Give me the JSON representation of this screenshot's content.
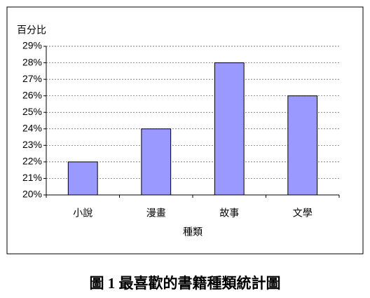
{
  "chart_data": {
    "type": "bar",
    "title": "圖 1 最喜歡的書籍種類統計圖",
    "y_label": "百分比",
    "x_label": "種類",
    "categories": [
      "小說",
      "漫畫",
      "故事",
      "文學"
    ],
    "values": [
      22,
      24,
      28,
      26
    ],
    "color": "#9999ff",
    "ylim": [
      20,
      29
    ],
    "yticks": [
      {
        "value": 20,
        "label": "20%"
      },
      {
        "value": 21,
        "label": "21%"
      },
      {
        "value": 22,
        "label": "22%"
      },
      {
        "value": 23,
        "label": "23%"
      },
      {
        "value": 24,
        "label": "24%"
      },
      {
        "value": 25,
        "label": "25%"
      },
      {
        "value": 26,
        "label": "26%"
      },
      {
        "value": 27,
        "label": "27%"
      },
      {
        "value": 28,
        "label": "28%"
      },
      {
        "value": 29,
        "label": "29%"
      }
    ],
    "grid": true
  }
}
